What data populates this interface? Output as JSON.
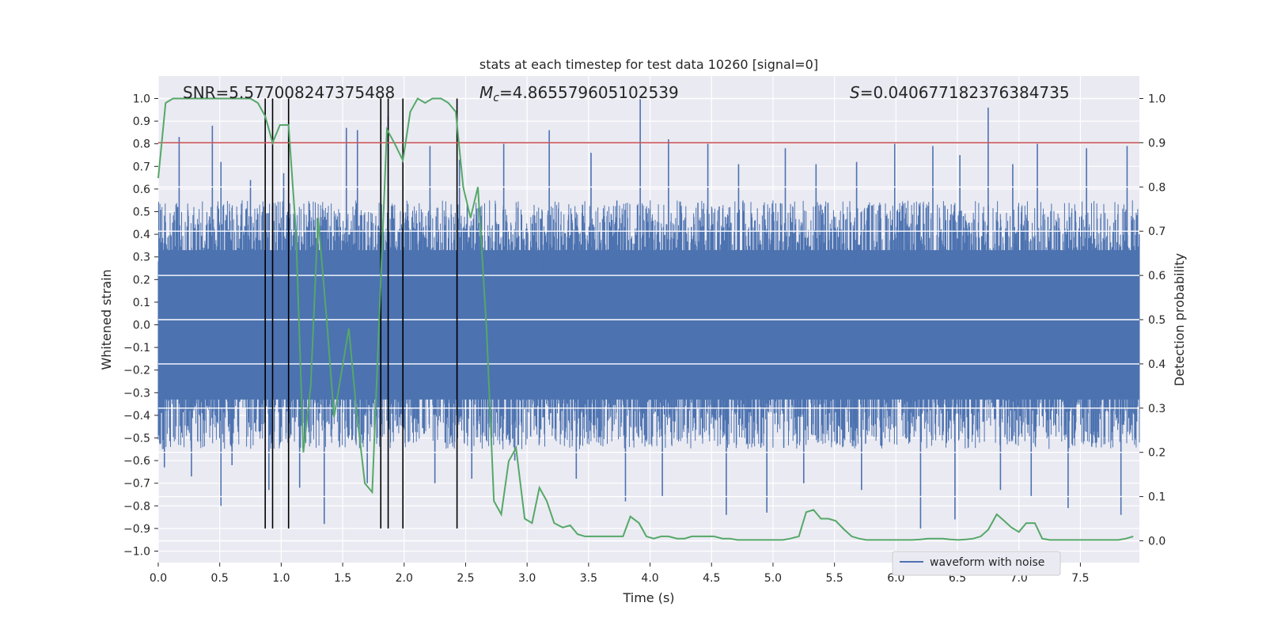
{
  "chart_data": {
    "type": "line",
    "title": "stats at each timestep for test data 10260 [signal=0]",
    "xlabel": "Time (s)",
    "ylabel": "Whitened strain",
    "y2label": "Detection probability",
    "xlim": [
      0.0,
      7.98
    ],
    "ylim": [
      -1.0,
      1.0
    ],
    "y2lim": [
      -0.05,
      1.0
    ],
    "xticks": [
      0.0,
      0.5,
      1.0,
      1.5,
      2.0,
      2.5,
      3.0,
      3.5,
      4.0,
      4.5,
      5.0,
      5.5,
      6.0,
      6.5,
      7.0,
      7.5
    ],
    "xtick_labels": [
      "0.0",
      "0.5",
      "1.0",
      "1.5",
      "2.0",
      "2.5",
      "3.0",
      "3.5",
      "4.0",
      "4.5",
      "5.0",
      "5.5",
      "6.0",
      "6.5",
      "7.0",
      "7.5"
    ],
    "yticks": [
      -1.0,
      -0.9,
      -0.8,
      -0.7,
      -0.6,
      -0.5,
      -0.4,
      -0.3,
      -0.2,
      -0.1,
      0.0,
      0.1,
      0.2,
      0.3,
      0.4,
      0.5,
      0.6,
      0.7,
      0.8,
      0.9,
      1.0
    ],
    "ytick_labels": [
      "−1.0",
      "−0.9",
      "−0.8",
      "−0.7",
      "−0.6",
      "−0.5",
      "−0.4",
      "−0.3",
      "−0.2",
      "−0.1",
      "0.0",
      "0.1",
      "0.2",
      "0.3",
      "0.4",
      "0.5",
      "0.6",
      "0.7",
      "0.8",
      "0.9",
      "1.0"
    ],
    "y2ticks": [
      0.0,
      0.1,
      0.2,
      0.3,
      0.4,
      0.5,
      0.6,
      0.7,
      0.8,
      0.9,
      1.0
    ],
    "y2tick_labels": [
      "0.0",
      "0.1",
      "0.2",
      "0.3",
      "0.4",
      "0.5",
      "0.6",
      "0.7",
      "0.8",
      "0.9",
      "1.0"
    ],
    "annotations": {
      "snr": "SNR=5.577008247375488",
      "mc_symbol": "M",
      "mc_sub": "c",
      "mc_value": "=4.865579605102539",
      "s_symbol": "S",
      "s_value": "=0.040677182376384735"
    },
    "threshold": {
      "y2": 0.9,
      "color": "#c44e52"
    },
    "vertical_lines_x": [
      0.87,
      0.93,
      1.06,
      1.81,
      1.87,
      1.99,
      2.43
    ],
    "noise": {
      "name": "waveform with noise",
      "color": "#4c72b0",
      "envelope_upper": 0.55,
      "envelope_lower": -0.55,
      "peaks": [
        {
          "x": 0.17,
          "y": 0.83
        },
        {
          "x": 0.44,
          "y": 0.88
        },
        {
          "x": 0.51,
          "y": 0.72
        },
        {
          "x": 0.75,
          "y": 0.64
        },
        {
          "x": 1.02,
          "y": 0.67
        },
        {
          "x": 1.53,
          "y": 0.87
        },
        {
          "x": 1.62,
          "y": 0.86
        },
        {
          "x": 1.87,
          "y": 0.92
        },
        {
          "x": 2.21,
          "y": 0.79
        },
        {
          "x": 2.45,
          "y": 0.73
        },
        {
          "x": 2.81,
          "y": 0.8
        },
        {
          "x": 3.18,
          "y": 0.86
        },
        {
          "x": 3.52,
          "y": 0.76
        },
        {
          "x": 3.92,
          "y": 1.0
        },
        {
          "x": 4.15,
          "y": 0.82
        },
        {
          "x": 4.47,
          "y": 0.8
        },
        {
          "x": 4.72,
          "y": 0.71
        },
        {
          "x": 5.1,
          "y": 0.78
        },
        {
          "x": 5.35,
          "y": 0.71
        },
        {
          "x": 5.68,
          "y": 0.72
        },
        {
          "x": 5.99,
          "y": 0.8
        },
        {
          "x": 6.3,
          "y": 0.79
        },
        {
          "x": 6.52,
          "y": 0.75
        },
        {
          "x": 6.75,
          "y": 0.96
        },
        {
          "x": 6.95,
          "y": 0.71
        },
        {
          "x": 7.15,
          "y": 0.8
        },
        {
          "x": 7.55,
          "y": 0.78
        },
        {
          "x": 7.88,
          "y": 0.79
        }
      ],
      "troughs": [
        {
          "x": 0.05,
          "y": -0.63
        },
        {
          "x": 0.27,
          "y": -0.67
        },
        {
          "x": 0.51,
          "y": -0.8
        },
        {
          "x": 0.6,
          "y": -0.62
        },
        {
          "x": 0.9,
          "y": -0.73
        },
        {
          "x": 1.15,
          "y": -0.72
        },
        {
          "x": 1.35,
          "y": -0.88
        },
        {
          "x": 1.7,
          "y": -0.7
        },
        {
          "x": 2.25,
          "y": -0.7
        },
        {
          "x": 2.55,
          "y": -0.68
        },
        {
          "x": 2.9,
          "y": -0.6
        },
        {
          "x": 3.4,
          "y": -0.68
        },
        {
          "x": 3.8,
          "y": -0.78
        },
        {
          "x": 4.1,
          "y": -0.76
        },
        {
          "x": 4.62,
          "y": -0.84
        },
        {
          "x": 4.95,
          "y": -0.83
        },
        {
          "x": 5.25,
          "y": -0.7
        },
        {
          "x": 5.72,
          "y": -0.73
        },
        {
          "x": 6.2,
          "y": -0.9
        },
        {
          "x": 6.48,
          "y": -0.86
        },
        {
          "x": 6.85,
          "y": -0.73
        },
        {
          "x": 7.1,
          "y": -0.76
        },
        {
          "x": 7.4,
          "y": -0.81
        },
        {
          "x": 7.83,
          "y": -0.84
        }
      ]
    },
    "series": [
      {
        "name": "detection probability",
        "axis": "right",
        "color": "#55a868",
        "x": [
          0.0,
          0.06,
          0.12,
          0.18,
          0.25,
          0.31,
          0.37,
          0.43,
          0.5,
          0.56,
          0.62,
          0.68,
          0.75,
          0.81,
          0.87,
          0.93,
          0.99,
          1.06,
          1.12,
          1.18,
          1.24,
          1.3,
          1.37,
          1.43,
          1.49,
          1.55,
          1.61,
          1.68,
          1.74,
          1.8,
          1.86,
          1.92,
          1.99,
          2.05,
          2.11,
          2.17,
          2.23,
          2.3,
          2.36,
          2.42,
          2.48,
          2.54,
          2.6,
          2.67,
          2.73,
          2.79,
          2.85,
          2.91,
          2.98,
          3.04,
          3.1,
          3.16,
          3.22,
          3.29,
          3.35,
          3.41,
          3.47,
          3.53,
          3.6,
          3.66,
          3.72,
          3.78,
          3.84,
          3.91,
          3.97,
          4.03,
          4.09,
          4.15,
          4.22,
          4.28,
          4.34,
          4.4,
          4.46,
          4.52,
          4.59,
          4.65,
          4.71,
          4.77,
          4.83,
          4.9,
          4.96,
          5.02,
          5.08,
          5.14,
          5.21,
          5.27,
          5.33,
          5.39,
          5.45,
          5.51,
          5.58,
          5.64,
          5.7,
          5.76,
          5.82,
          5.89,
          5.95,
          6.01,
          6.07,
          6.13,
          6.2,
          6.26,
          6.32,
          6.38,
          6.44,
          6.51,
          6.57,
          6.63,
          6.69,
          6.75,
          6.82,
          6.88,
          6.94,
          7.0,
          7.06,
          7.13,
          7.19,
          7.25,
          7.31,
          7.37,
          7.43,
          7.5,
          7.56,
          7.62,
          7.68,
          7.74,
          7.81,
          7.87,
          7.93
        ],
        "values": [
          0.82,
          0.99,
          1.0,
          1.0,
          1.0,
          1.0,
          1.0,
          1.0,
          1.0,
          1.0,
          1.0,
          1.0,
          1.0,
          0.99,
          0.96,
          0.9,
          0.94,
          0.94,
          0.7,
          0.2,
          0.35,
          0.73,
          0.5,
          0.28,
          0.38,
          0.48,
          0.3,
          0.13,
          0.11,
          0.52,
          0.93,
          0.9,
          0.86,
          0.97,
          1.0,
          0.99,
          1.0,
          1.0,
          0.99,
          0.97,
          0.8,
          0.73,
          0.8,
          0.48,
          0.09,
          0.06,
          0.18,
          0.21,
          0.05,
          0.04,
          0.12,
          0.09,
          0.04,
          0.03,
          0.035,
          0.015,
          0.01,
          0.01,
          0.01,
          0.01,
          0.01,
          0.01,
          0.055,
          0.04,
          0.01,
          0.005,
          0.01,
          0.01,
          0.005,
          0.005,
          0.01,
          0.01,
          0.01,
          0.01,
          0.005,
          0.005,
          0.002,
          0.002,
          0.002,
          0.002,
          0.002,
          0.002,
          0.002,
          0.005,
          0.01,
          0.065,
          0.07,
          0.05,
          0.05,
          0.045,
          0.025,
          0.01,
          0.005,
          0.002,
          0.002,
          0.002,
          0.002,
          0.002,
          0.002,
          0.002,
          0.003,
          0.005,
          0.005,
          0.005,
          0.003,
          0.002,
          0.003,
          0.005,
          0.01,
          0.025,
          0.06,
          0.045,
          0.03,
          0.02,
          0.04,
          0.04,
          0.005,
          0.002,
          0.002,
          0.002,
          0.002,
          0.002,
          0.002,
          0.002,
          0.002,
          0.002,
          0.002,
          0.005,
          0.01
        ]
      }
    ],
    "legend": {
      "label": "waveform with noise",
      "placement": "lower-right"
    }
  }
}
